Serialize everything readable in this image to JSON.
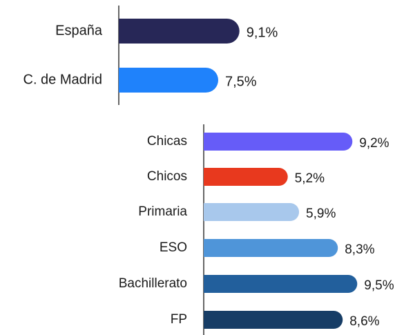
{
  "chart_data": [
    {
      "type": "hbar",
      "categories": [
        "España",
        "C. de Madrid"
      ],
      "values": [
        9.1,
        7.5
      ],
      "value_labels": [
        "9,1%",
        "7,5%"
      ],
      "colors": [
        "#272757",
        "#1f82fb"
      ],
      "xlim": [
        0,
        10
      ]
    },
    {
      "type": "hbar",
      "categories": [
        "Chicas",
        "Chicos",
        "Primaria",
        "ESO",
        "Bachillerato",
        "FP"
      ],
      "values": [
        9.2,
        5.2,
        5.9,
        8.3,
        9.5,
        8.6
      ],
      "value_labels": [
        "9,2%",
        "5,2%",
        "5,9%",
        "8,3%",
        "9,5%",
        "8,6%"
      ],
      "colors": [
        "#665cf8",
        "#e8391e",
        "#a8c8ec",
        "#4f95d9",
        "#225f9c",
        "#173d66"
      ],
      "xlim": [
        0,
        10
      ]
    }
  ]
}
